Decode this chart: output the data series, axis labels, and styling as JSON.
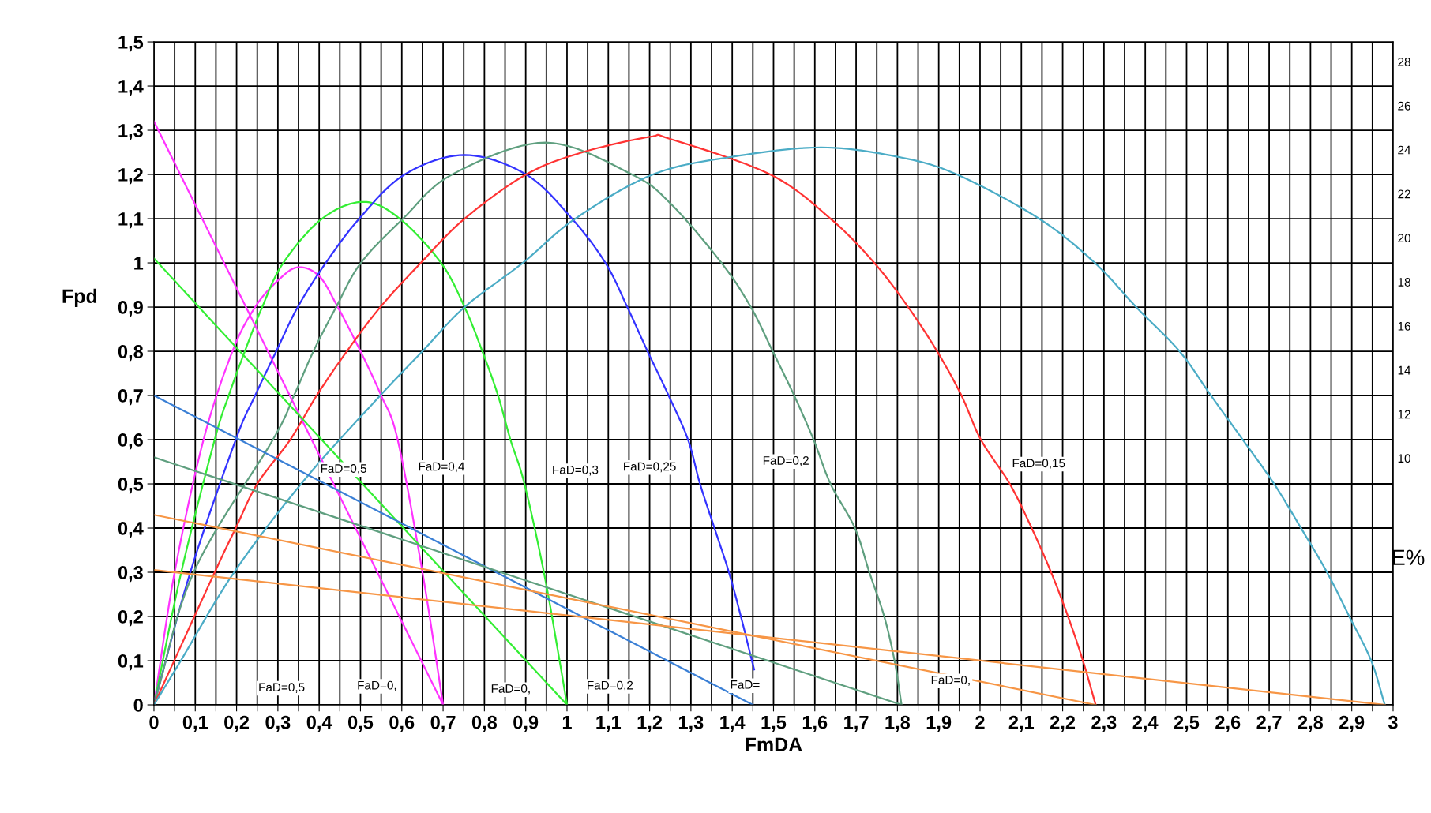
{
  "chart_data": {
    "type": "line",
    "xlabel": "FmDA",
    "ylabel": "Fpd",
    "y2label": "E%",
    "xlim": [
      0,
      3
    ],
    "ylim": [
      0,
      1.5
    ],
    "y2lim": [
      -1.2,
      28.9
    ],
    "xticks": [
      0,
      {
        "value": 0.05,
        "label": null
      },
      {
        "value": 0.1,
        "label": "0,1"
      },
      {
        "value": 0.15,
        "label": null
      },
      {
        "value": 0.2,
        "label": "0,2"
      },
      {
        "value": 0.25,
        "label": null
      },
      {
        "value": 0.3,
        "label": "0,3"
      },
      {
        "value": 0.35,
        "label": null
      },
      {
        "value": 0.4,
        "label": "0,4"
      },
      {
        "value": 0.45,
        "label": null
      },
      {
        "value": 0.5,
        "label": "0,5"
      },
      {
        "value": 0.55,
        "label": null
      },
      {
        "value": 0.6,
        "label": "0,6"
      },
      {
        "value": 0.65,
        "label": null
      },
      {
        "value": 0.7,
        "label": "0,7"
      },
      {
        "value": 0.75,
        "label": null
      },
      {
        "value": 0.8,
        "label": "0,8"
      },
      {
        "value": 0.85,
        "label": null
      },
      {
        "value": 0.9,
        "label": "0,9"
      },
      {
        "value": 0.95,
        "label": null
      },
      1,
      {
        "value": 1.05,
        "label": null
      },
      {
        "value": 1.1,
        "label": "1,1"
      },
      {
        "value": 1.15,
        "label": null
      },
      {
        "value": 1.2,
        "label": "1,2"
      },
      {
        "value": 1.25,
        "label": null
      },
      {
        "value": 1.3,
        "label": "1,3"
      },
      {
        "value": 1.35,
        "label": null
      },
      {
        "value": 1.4,
        "label": "1,4"
      },
      {
        "value": 1.45,
        "label": null
      },
      {
        "value": 1.5,
        "label": "1,5"
      },
      {
        "value": 1.55,
        "label": null
      },
      {
        "value": 1.6,
        "label": "1,6"
      },
      {
        "value": 1.65,
        "label": null
      },
      {
        "value": 1.7,
        "label": "1,7"
      },
      {
        "value": 1.75,
        "label": null
      },
      {
        "value": 1.8,
        "label": "1,8"
      },
      {
        "value": 1.85,
        "label": null
      },
      {
        "value": 1.9,
        "label": "1,9"
      },
      {
        "value": 1.95,
        "label": null
      },
      2,
      {
        "value": 2.05,
        "label": null
      },
      {
        "value": 2.1,
        "label": "2,1"
      },
      {
        "value": 2.15,
        "label": null
      },
      {
        "value": 2.2,
        "label": "2,2"
      },
      {
        "value": 2.25,
        "label": null
      },
      {
        "value": 2.3,
        "label": "2,3"
      },
      {
        "value": 2.35,
        "label": null
      },
      {
        "value": 2.4,
        "label": "2,4"
      },
      {
        "value": 2.45,
        "label": null
      },
      {
        "value": 2.5,
        "label": "2,5"
      },
      {
        "value": 2.55,
        "label": null
      },
      {
        "value": 2.6,
        "label": "2,6"
      },
      {
        "value": 2.65,
        "label": null
      },
      {
        "value": 2.7,
        "label": "2,7"
      },
      {
        "value": 2.75,
        "label": null
      },
      {
        "value": 2.8,
        "label": "2,8"
      },
      {
        "value": 2.85,
        "label": null
      },
      {
        "value": 2.9,
        "label": "2,9"
      },
      {
        "value": 2.95,
        "label": null
      },
      3
    ],
    "yticks": [
      0,
      {
        "value": 0.1,
        "label": "0,1"
      },
      {
        "value": 0.2,
        "label": "0,2"
      },
      {
        "value": 0.3,
        "label": "0,3"
      },
      {
        "value": 0.4,
        "label": "0,4"
      },
      {
        "value": 0.5,
        "label": "0,5"
      },
      {
        "value": 0.6,
        "label": "0,6"
      },
      {
        "value": 0.7,
        "label": "0,7"
      },
      {
        "value": 0.8,
        "label": "0,8"
      },
      {
        "value": 0.9,
        "label": "0,9"
      },
      1,
      {
        "value": 1.1,
        "label": "1,1"
      },
      {
        "value": 1.2,
        "label": "1,2"
      },
      {
        "value": 1.3,
        "label": "1,3"
      },
      {
        "value": 1.4,
        "label": "1,4"
      },
      {
        "value": 1.5,
        "label": "1,5"
      }
    ],
    "y2ticks": [
      10,
      12,
      14,
      16,
      18,
      20,
      22,
      24,
      26,
      28
    ],
    "grid": true,
    "marker": "none",
    "line_style": "solid",
    "series": [
      {
        "color": "#ff33ff",
        "x": [
          0,
          0.05,
          0.12,
          0.19,
          0.245,
          0.3,
          0.348,
          0.4,
          0.445,
          0.5,
          0.55,
          0.59,
          0.65,
          0.7
        ],
        "values": [
          0,
          0.3,
          0.6,
          0.8,
          0.9,
          0.96,
          0.99,
          0.97,
          0.9,
          0.8,
          0.7,
          0.6,
          0.3,
          0
        ]
      },
      {
        "color": "#33ee33",
        "x": [
          0,
          0.066,
          0.147,
          0.181,
          0.22,
          0.262,
          0.313,
          0.407,
          0.507,
          0.595,
          0.695,
          0.752,
          0.795,
          0.833,
          0.863,
          0.897,
          0.944,
          0.982,
          1.0
        ],
        "values": [
          0,
          0.3,
          0.6,
          0.7,
          0.8,
          0.9,
          1.0,
          1.1,
          1.138,
          1.1,
          1.0,
          0.9,
          0.8,
          0.7,
          0.6,
          0.5,
          0.3,
          0.1,
          0
        ]
      },
      {
        "color": "#3333ff",
        "x": [
          0,
          0.088,
          0.198,
          0.245,
          0.296,
          0.348,
          0.416,
          0.497,
          0.607,
          0.752,
          0.901,
          1.012,
          1.093,
          1.146,
          1.195,
          1.246,
          1.293,
          1.322,
          1.357,
          1.392,
          1.421,
          1.453
        ],
        "values": [
          0,
          0.3,
          0.6,
          0.7,
          0.8,
          0.9,
          1.0,
          1.1,
          1.2,
          1.244,
          1.2,
          1.1,
          1.0,
          0.9,
          0.8,
          0.7,
          0.6,
          0.5,
          0.4,
          0.3,
          0.2,
          0.08
        ]
      },
      {
        "color": "#5f9f7f",
        "x": [
          0,
          0.096,
          0.288,
          0.339,
          0.386,
          0.441,
          0.501,
          0.603,
          0.722,
          0.948,
          1.157,
          1.251,
          1.374,
          1.445,
          1.498,
          1.55,
          1.597,
          1.638,
          1.697,
          1.732,
          1.768,
          1.793,
          1.81
        ],
        "values": [
          0,
          0.3,
          0.6,
          0.7,
          0.8,
          0.9,
          1.0,
          1.1,
          1.2,
          1.272,
          1.2,
          1.134,
          1.0,
          0.9,
          0.8,
          0.7,
          0.6,
          0.5,
          0.4,
          0.3,
          0.2,
          0.1,
          0
        ]
      },
      {
        "color": "#ff3333",
        "x": [
          0,
          0.147,
          0.198,
          0.25,
          0.33,
          0.394,
          0.467,
          0.548,
          0.646,
          0.752,
          0.901,
          1.037,
          1.2,
          1.251,
          1.492,
          1.638,
          1.744,
          1.826,
          1.896,
          1.955,
          2.002,
          2.072,
          2.125,
          2.172,
          2.213,
          2.249,
          2.28
        ],
        "values": [
          0,
          0.3,
          0.4,
          0.5,
          0.6,
          0.7,
          0.8,
          0.9,
          1.0,
          1.1,
          1.2,
          1.25,
          1.285,
          1.28,
          1.2,
          1.1,
          1.0,
          0.9,
          0.8,
          0.7,
          0.6,
          0.5,
          0.4,
          0.3,
          0.2,
          0.1,
          0
        ]
      },
      {
        "color": "#4bacc6",
        "x": [
          0,
          0.065,
          0.194,
          0.365,
          0.548,
          0.65,
          0.752,
          0.893,
          1.02,
          1.208,
          1.4,
          1.615,
          1.8,
          1.944,
          2.143,
          2.278,
          2.378,
          2.483,
          2.559,
          2.636,
          2.712,
          2.777,
          2.84,
          2.894,
          2.947,
          2.98
        ],
        "values": [
          0,
          0.1,
          0.3,
          0.51,
          0.7,
          0.8,
          0.9,
          1.0,
          1.1,
          1.2,
          1.24,
          1.261,
          1.24,
          1.2,
          1.1,
          1.0,
          0.9,
          0.8,
          0.7,
          0.6,
          0.5,
          0.4,
          0.3,
          0.2,
          0.1,
          0
        ]
      },
      {
        "color": "#ff33ff",
        "x": [
          0,
          0.7
        ],
        "values": [
          1.32,
          0
        ]
      },
      {
        "color": "#33ee33",
        "x": [
          0,
          1.0
        ],
        "values": [
          1.01,
          0
        ]
      },
      {
        "color": "#3a7fd5",
        "x": [
          0,
          1.45
        ],
        "values": [
          0.7,
          0
        ]
      },
      {
        "color": "#5f9f7f",
        "x": [
          0,
          1.81
        ],
        "values": [
          0.56,
          0
        ]
      },
      {
        "color": "#f79646",
        "x": [
          0,
          2.28
        ],
        "values": [
          0.43,
          0
        ]
      },
      {
        "color": "#f79646",
        "x": [
          0,
          2.98
        ],
        "values": [
          0.305,
          0
        ]
      }
    ],
    "annotations": [
      "FaD=0,5",
      "FaD=0,4",
      "FaD=0,3",
      "FaD=0,25",
      "FaD=0,2",
      "FaD=0,15",
      "FaD=0,5",
      "FaD=0,",
      "FaD=0,",
      "FaD=0,2",
      "FaD=",
      "FaD=0,"
    ]
  }
}
